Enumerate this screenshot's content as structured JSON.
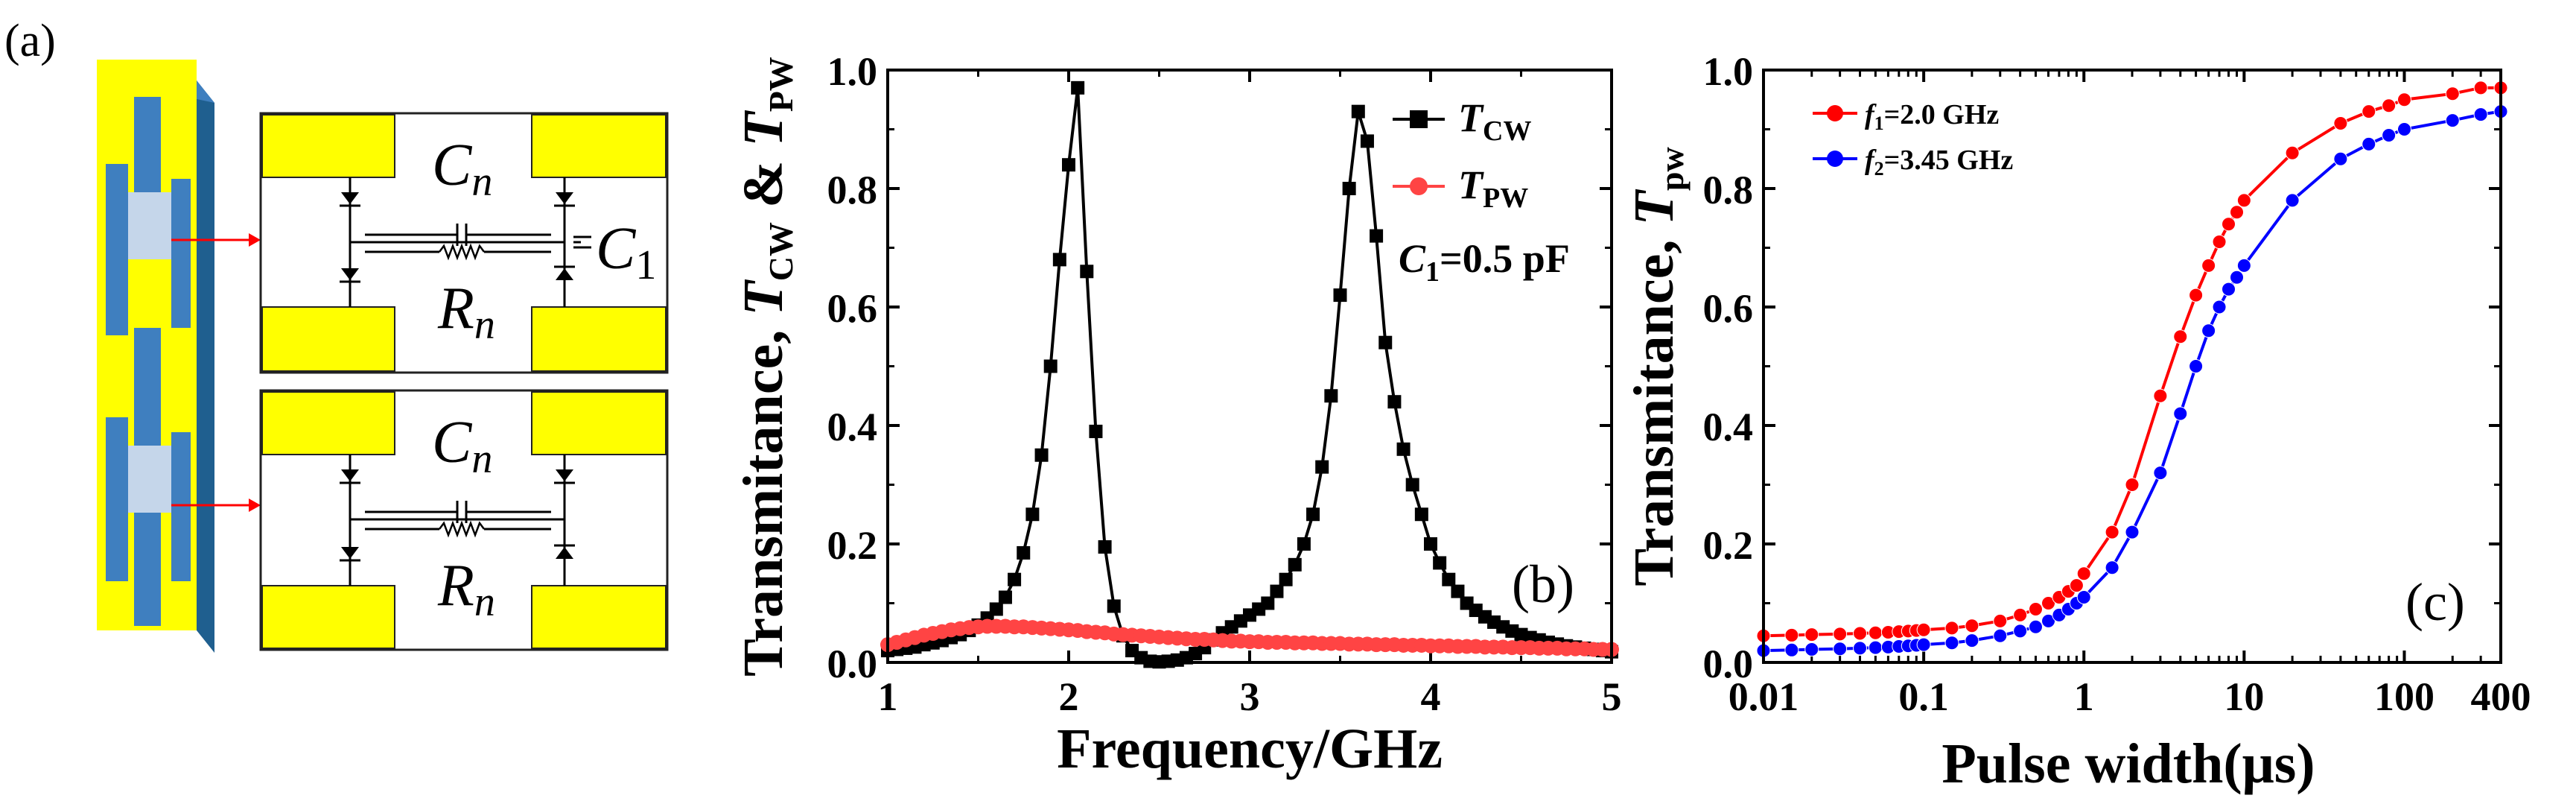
{
  "panel_a": {
    "label": "(a)",
    "top_circuit": {
      "cn_label": "C",
      "cn_sub": "n",
      "rn_label": "R",
      "rn_sub": "n",
      "c1_label": "C",
      "c1_sub": "1"
    },
    "bottom_circuit": {
      "cn_label": "C",
      "cn_sub": "n",
      "rn_label": "R",
      "rn_sub": "n"
    },
    "colors": {
      "yellow": "#ffff00",
      "blue": "#3f7fbf",
      "light_blue": "#c5d6ea",
      "dark_blue": "#1f5f8f",
      "arrow": "#ff0000"
    }
  },
  "chart_data": [
    {
      "type": "line",
      "panel_label": "(b)",
      "xlabel": "Frequency/GHz",
      "ylabel": {
        "main": "Transmitance, ",
        "t1": "T",
        "t1_sub": "CW",
        "amp": " & ",
        "t2": "T",
        "t2_sub": "PW"
      },
      "xlim": [
        1,
        5
      ],
      "ylim": [
        0,
        1.0
      ],
      "xticks": [
        "1",
        "2",
        "3",
        "4",
        "5"
      ],
      "yticks": [
        "0.0",
        "0.2",
        "0.4",
        "0.6",
        "0.8",
        "1.0"
      ],
      "annotation": {
        "c": "C",
        "c_sub": "1",
        "text": "=0.5 pF"
      },
      "series": [
        {
          "name": "T_CW",
          "label_main": "T",
          "label_sub": "CW",
          "color": "#000000",
          "marker": "square",
          "x": [
            1.0,
            1.05,
            1.1,
            1.15,
            1.2,
            1.25,
            1.3,
            1.35,
            1.4,
            1.45,
            1.5,
            1.55,
            1.6,
            1.65,
            1.7,
            1.75,
            1.8,
            1.85,
            1.9,
            1.95,
            2.0,
            2.05,
            2.1,
            2.15,
            2.2,
            2.25,
            2.3,
            2.35,
            2.4,
            2.45,
            2.5,
            2.55,
            2.6,
            2.65,
            2.7,
            2.75,
            2.8,
            2.85,
            2.9,
            2.95,
            3.0,
            3.05,
            3.1,
            3.15,
            3.2,
            3.25,
            3.3,
            3.35,
            3.4,
            3.45,
            3.5,
            3.55,
            3.6,
            3.65,
            3.7,
            3.75,
            3.8,
            3.85,
            3.9,
            3.95,
            4.0,
            4.05,
            4.1,
            4.15,
            4.2,
            4.25,
            4.3,
            4.35,
            4.4,
            4.45,
            4.5,
            4.55,
            4.6,
            4.65,
            4.7,
            4.75,
            4.8,
            4.85,
            4.9,
            4.95,
            5.0
          ],
          "values": [
            0.02,
            0.022,
            0.024,
            0.026,
            0.03,
            0.033,
            0.037,
            0.042,
            0.047,
            0.054,
            0.063,
            0.075,
            0.09,
            0.11,
            0.14,
            0.185,
            0.25,
            0.35,
            0.5,
            0.68,
            0.84,
            0.97,
            0.66,
            0.39,
            0.195,
            0.095,
            0.045,
            0.02,
            0.008,
            0.002,
            0.001,
            0.002,
            0.004,
            0.008,
            0.015,
            0.025,
            0.038,
            0.05,
            0.06,
            0.07,
            0.08,
            0.09,
            0.1,
            0.12,
            0.14,
            0.165,
            0.2,
            0.25,
            0.33,
            0.45,
            0.62,
            0.8,
            0.93,
            0.88,
            0.72,
            0.54,
            0.44,
            0.36,
            0.3,
            0.25,
            0.2,
            0.168,
            0.14,
            0.12,
            0.1,
            0.088,
            0.077,
            0.068,
            0.06,
            0.053,
            0.047,
            0.042,
            0.038,
            0.034,
            0.031,
            0.028,
            0.026,
            0.024,
            0.022,
            0.02,
            0.018
          ]
        },
        {
          "name": "T_PW",
          "label_main": "T",
          "label_sub": "PW",
          "color": "#ff4444",
          "marker": "circle",
          "x": [
            1.0,
            1.05,
            1.1,
            1.15,
            1.2,
            1.25,
            1.3,
            1.35,
            1.4,
            1.45,
            1.5,
            1.55,
            1.6,
            1.65,
            1.7,
            1.75,
            1.8,
            1.85,
            1.9,
            1.95,
            2.0,
            2.05,
            2.1,
            2.15,
            2.2,
            2.25,
            2.3,
            2.35,
            2.4,
            2.45,
            2.5,
            2.55,
            2.6,
            2.65,
            2.7,
            2.75,
            2.8,
            2.85,
            2.9,
            2.95,
            3.0,
            3.05,
            3.1,
            3.15,
            3.2,
            3.25,
            3.3,
            3.35,
            3.4,
            3.45,
            3.5,
            3.55,
            3.6,
            3.65,
            3.7,
            3.75,
            3.8,
            3.85,
            3.9,
            3.95,
            4.0,
            4.05,
            4.1,
            4.15,
            4.2,
            4.25,
            4.3,
            4.35,
            4.4,
            4.45,
            4.5,
            4.55,
            4.6,
            4.65,
            4.7,
            4.75,
            4.8,
            4.85,
            4.9,
            4.95,
            5.0
          ],
          "values": [
            0.03,
            0.034,
            0.038,
            0.042,
            0.046,
            0.049,
            0.052,
            0.055,
            0.057,
            0.059,
            0.06,
            0.061,
            0.061,
            0.061,
            0.06,
            0.06,
            0.059,
            0.058,
            0.057,
            0.056,
            0.055,
            0.054,
            0.052,
            0.051,
            0.05,
            0.048,
            0.047,
            0.046,
            0.045,
            0.044,
            0.043,
            0.042,
            0.041,
            0.04,
            0.039,
            0.039,
            0.038,
            0.037,
            0.036,
            0.036,
            0.035,
            0.035,
            0.034,
            0.034,
            0.034,
            0.033,
            0.033,
            0.033,
            0.032,
            0.032,
            0.032,
            0.031,
            0.031,
            0.031,
            0.03,
            0.03,
            0.03,
            0.029,
            0.029,
            0.029,
            0.028,
            0.028,
            0.028,
            0.027,
            0.027,
            0.027,
            0.026,
            0.026,
            0.026,
            0.025,
            0.025,
            0.025,
            0.024,
            0.024,
            0.024,
            0.023,
            0.023,
            0.023,
            0.022,
            0.022,
            0.022
          ]
        }
      ]
    },
    {
      "type": "line",
      "panel_label": "(c)",
      "xlabel": "Pulse width(μs)",
      "ylabel": {
        "main": "Transmitance, ",
        "t1": "T",
        "t1_sub": "pw"
      },
      "xscale": "log",
      "xlim": [
        0.01,
        400
      ],
      "ylim": [
        0,
        1.0
      ],
      "xticks": [
        "0.01",
        "0.1",
        "1",
        "10",
        "100",
        "400"
      ],
      "xtick_values": [
        0.01,
        0.1,
        1,
        10,
        100,
        400
      ],
      "yticks": [
        "0.0",
        "0.2",
        "0.4",
        "0.6",
        "0.8",
        "1.0"
      ],
      "series": [
        {
          "name": "f1=2.0 GHz",
          "label_main": "f",
          "label_sub": "1",
          "label_rest": "=2.0 GHz",
          "color": "#ff0000",
          "marker": "circle",
          "x": [
            0.01,
            0.015,
            0.02,
            0.03,
            0.04,
            0.05,
            0.06,
            0.07,
            0.08,
            0.09,
            0.1,
            0.15,
            0.2,
            0.3,
            0.4,
            0.5,
            0.6,
            0.7,
            0.8,
            0.9,
            1,
            1.5,
            2,
            3,
            4,
            5,
            6,
            7,
            8,
            9,
            10,
            20,
            40,
            60,
            80,
            100,
            200,
            300,
            400
          ],
          "values": [
            0.045,
            0.046,
            0.047,
            0.048,
            0.049,
            0.05,
            0.051,
            0.052,
            0.053,
            0.054,
            0.055,
            0.058,
            0.062,
            0.07,
            0.08,
            0.09,
            0.1,
            0.11,
            0.12,
            0.13,
            0.15,
            0.22,
            0.3,
            0.45,
            0.55,
            0.62,
            0.67,
            0.71,
            0.74,
            0.76,
            0.78,
            0.86,
            0.91,
            0.93,
            0.94,
            0.95,
            0.96,
            0.97,
            0.97
          ]
        },
        {
          "name": "f2=3.45 GHz",
          "label_main": "f",
          "label_sub": "2",
          "label_rest": "=3.45 GHz",
          "color": "#0000ff",
          "marker": "circle",
          "x": [
            0.01,
            0.015,
            0.02,
            0.03,
            0.04,
            0.05,
            0.06,
            0.07,
            0.08,
            0.09,
            0.1,
            0.15,
            0.2,
            0.3,
            0.4,
            0.5,
            0.6,
            0.7,
            0.8,
            0.9,
            1,
            1.5,
            2,
            3,
            4,
            5,
            6,
            7,
            8,
            9,
            10,
            20,
            40,
            60,
            80,
            100,
            200,
            300,
            400
          ],
          "values": [
            0.02,
            0.021,
            0.022,
            0.023,
            0.024,
            0.025,
            0.026,
            0.027,
            0.028,
            0.029,
            0.03,
            0.033,
            0.037,
            0.045,
            0.053,
            0.06,
            0.07,
            0.08,
            0.09,
            0.1,
            0.11,
            0.16,
            0.22,
            0.32,
            0.42,
            0.5,
            0.56,
            0.6,
            0.63,
            0.65,
            0.67,
            0.78,
            0.85,
            0.875,
            0.89,
            0.9,
            0.915,
            0.925,
            0.93
          ]
        }
      ]
    }
  ]
}
